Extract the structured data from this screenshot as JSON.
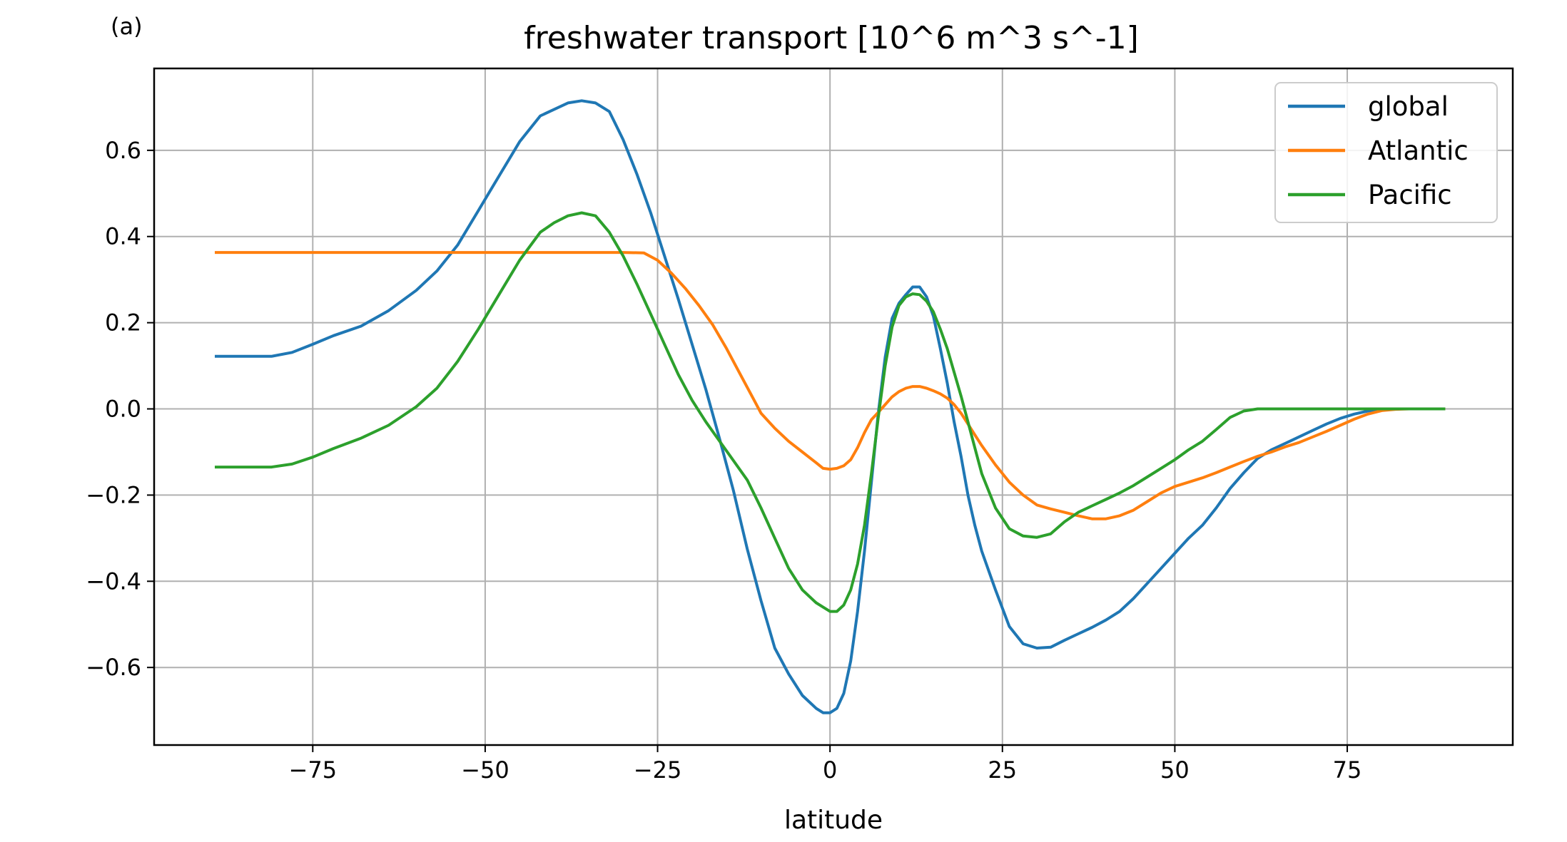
{
  "panel_label": "(a)",
  "chart_data": {
    "type": "line",
    "title": "freshwater transport [10^6 m^3 s^-1]",
    "xlabel": "latitude",
    "ylabel": "",
    "xlim": [
      -98,
      99
    ],
    "ylim": [
      -0.78,
      0.79
    ],
    "xticks": [
      -75,
      -50,
      -25,
      0,
      25,
      50,
      75
    ],
    "xtick_labels": [
      "−75",
      "−50",
      "−25",
      "0",
      "25",
      "50",
      "75"
    ],
    "yticks": [
      -0.6,
      -0.4,
      -0.2,
      0.0,
      0.2,
      0.4,
      0.6
    ],
    "ytick_labels": [
      "−0.6",
      "−0.4",
      "−0.2",
      "0.0",
      "0.2",
      "0.4",
      "0.6"
    ],
    "grid": true,
    "legend_position": "top-right",
    "series": [
      {
        "name": "global",
        "color": "#1f77b4",
        "x": [
          -89,
          -85,
          -81,
          -78,
          -75,
          -72,
          -68,
          -64,
          -60,
          -57,
          -54,
          -51,
          -48,
          -45,
          -42,
          -40,
          -38,
          -36,
          -34,
          -32,
          -30,
          -28,
          -26,
          -24,
          -22,
          -20,
          -18,
          -16,
          -14,
          -12,
          -10,
          -8,
          -6,
          -4,
          -2,
          -1,
          0,
          1,
          2,
          3,
          4,
          5,
          6,
          7,
          8,
          9,
          10,
          11,
          12,
          13,
          14,
          15,
          16,
          17,
          18,
          19,
          20,
          21,
          22,
          24,
          26,
          28,
          30,
          32,
          34,
          36,
          38,
          40,
          42,
          44,
          46,
          48,
          50,
          52,
          54,
          56,
          58,
          60,
          62,
          64,
          66,
          68,
          70,
          72,
          74,
          76,
          78,
          80,
          82,
          84,
          86,
          89
        ],
        "y": [
          0.122,
          0.122,
          0.122,
          0.131,
          0.15,
          0.17,
          0.192,
          0.228,
          0.275,
          0.32,
          0.38,
          0.46,
          0.54,
          0.62,
          0.68,
          0.695,
          0.71,
          0.715,
          0.71,
          0.69,
          0.625,
          0.545,
          0.455,
          0.355,
          0.255,
          0.15,
          0.045,
          -0.07,
          -0.19,
          -0.325,
          -0.445,
          -0.555,
          -0.615,
          -0.665,
          -0.695,
          -0.705,
          -0.705,
          -0.695,
          -0.66,
          -0.585,
          -0.47,
          -0.33,
          -0.17,
          -0.01,
          0.12,
          0.21,
          0.245,
          0.265,
          0.283,
          0.283,
          0.26,
          0.215,
          0.14,
          0.06,
          -0.03,
          -0.11,
          -0.2,
          -0.27,
          -0.33,
          -0.42,
          -0.505,
          -0.545,
          -0.555,
          -0.553,
          -0.537,
          -0.522,
          -0.507,
          -0.49,
          -0.47,
          -0.44,
          -0.405,
          -0.37,
          -0.335,
          -0.3,
          -0.27,
          -0.23,
          -0.185,
          -0.148,
          -0.115,
          -0.095,
          -0.08,
          -0.065,
          -0.05,
          -0.035,
          -0.022,
          -0.012,
          -0.005,
          -0.002,
          0.0,
          0.0,
          0.0,
          0.0
        ]
      },
      {
        "name": "Atlantic",
        "color": "#ff7f0e",
        "x": [
          -89,
          -80,
          -70,
          -60,
          -50,
          -40,
          -30,
          -27,
          -25,
          -23,
          -21,
          -19,
          -17,
          -15,
          -13,
          -11,
          -10,
          -8,
          -6,
          -4,
          -2,
          -1,
          0,
          1,
          2,
          3,
          4,
          5,
          6,
          7,
          8,
          9,
          10,
          11,
          12,
          13,
          14,
          15,
          16,
          17,
          18,
          19,
          20,
          21,
          22,
          24,
          26,
          28,
          30,
          32,
          34,
          36,
          38,
          40,
          42,
          44,
          46,
          48,
          50,
          52,
          54,
          56,
          58,
          60,
          62,
          64,
          66,
          68,
          70,
          72,
          74,
          76,
          78,
          80,
          82,
          84,
          86,
          89
        ],
        "y": [
          0.363,
          0.363,
          0.363,
          0.363,
          0.363,
          0.363,
          0.363,
          0.362,
          0.345,
          0.315,
          0.28,
          0.24,
          0.195,
          0.14,
          0.08,
          0.02,
          -0.01,
          -0.045,
          -0.075,
          -0.1,
          -0.125,
          -0.138,
          -0.14,
          -0.138,
          -0.132,
          -0.118,
          -0.09,
          -0.055,
          -0.025,
          -0.008,
          0.01,
          0.028,
          0.04,
          0.048,
          0.052,
          0.052,
          0.048,
          0.042,
          0.035,
          0.025,
          0.01,
          -0.01,
          -0.035,
          -0.06,
          -0.085,
          -0.13,
          -0.17,
          -0.2,
          -0.223,
          -0.232,
          -0.24,
          -0.248,
          -0.255,
          -0.255,
          -0.248,
          -0.235,
          -0.215,
          -0.195,
          -0.18,
          -0.17,
          -0.16,
          -0.148,
          -0.135,
          -0.122,
          -0.11,
          -0.1,
          -0.088,
          -0.078,
          -0.065,
          -0.052,
          -0.038,
          -0.024,
          -0.012,
          -0.004,
          -0.001,
          0.0,
          0.0,
          0.0
        ]
      },
      {
        "name": "Pacific",
        "color": "#2ca02c",
        "x": [
          -89,
          -85,
          -81,
          -78,
          -75,
          -72,
          -68,
          -64,
          -60,
          -57,
          -54,
          -51,
          -48,
          -45,
          -42,
          -40,
          -38,
          -36,
          -34,
          -32,
          -30,
          -28,
          -26,
          -24,
          -22,
          -20,
          -18,
          -16,
          -14,
          -12,
          -10,
          -8,
          -6,
          -4,
          -2,
          -1,
          0,
          1,
          2,
          3,
          4,
          5,
          6,
          7,
          8,
          9,
          10,
          11,
          12,
          13,
          14,
          15,
          16,
          17,
          18,
          19,
          20,
          21,
          22,
          24,
          26,
          28,
          30,
          32,
          34,
          36,
          38,
          40,
          42,
          44,
          46,
          48,
          50,
          52,
          54,
          56,
          58,
          60,
          62,
          64,
          70,
          80,
          89
        ],
        "y": [
          -0.135,
          -0.135,
          -0.135,
          -0.128,
          -0.112,
          -0.092,
          -0.068,
          -0.038,
          0.005,
          0.048,
          0.11,
          0.185,
          0.265,
          0.345,
          0.41,
          0.432,
          0.448,
          0.455,
          0.448,
          0.41,
          0.355,
          0.29,
          0.22,
          0.15,
          0.08,
          0.02,
          -0.03,
          -0.075,
          -0.12,
          -0.165,
          -0.23,
          -0.3,
          -0.37,
          -0.42,
          -0.45,
          -0.46,
          -0.47,
          -0.47,
          -0.455,
          -0.42,
          -0.36,
          -0.27,
          -0.15,
          -0.02,
          0.1,
          0.19,
          0.24,
          0.26,
          0.267,
          0.265,
          0.25,
          0.225,
          0.185,
          0.14,
          0.085,
          0.03,
          -0.03,
          -0.09,
          -0.15,
          -0.23,
          -0.278,
          -0.295,
          -0.298,
          -0.29,
          -0.262,
          -0.24,
          -0.225,
          -0.21,
          -0.195,
          -0.178,
          -0.158,
          -0.138,
          -0.118,
          -0.095,
          -0.075,
          -0.048,
          -0.02,
          -0.005,
          0.0,
          0.0,
          0.0,
          0.0,
          0.0
        ]
      }
    ]
  }
}
